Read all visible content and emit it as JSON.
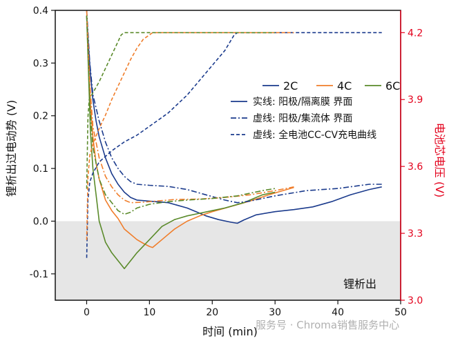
{
  "chart_data": {
    "type": "line",
    "xlabel": "时间 (min)",
    "ylabel": "锂析出过电动势 (V)",
    "y2label": "电池芯电压 (V)",
    "xlim": [
      -5,
      50
    ],
    "ylim": [
      -0.15,
      0.4
    ],
    "y2lim": [
      3.0,
      4.3
    ],
    "xticks": [
      "0",
      "10",
      "20",
      "30",
      "40",
      "50"
    ],
    "yticks": [
      "-0.1",
      "0.0",
      "0.1",
      "0.2",
      "0.3",
      "0.4"
    ],
    "y2ticks": [
      "3.0",
      "3.3",
      "3.6",
      "3.9",
      "4.2"
    ],
    "shaded_region": {
      "ymin": -0.15,
      "ymax": 0.0,
      "color": "#e6e6e6"
    },
    "region_label": "锂析出",
    "legend_colors": [
      {
        "label": "2C",
        "color": "#1a3a8c"
      },
      {
        "label": "4C",
        "color": "#f07d2a"
      },
      {
        "label": "6C",
        "color": "#5a8a2a"
      }
    ],
    "legend_styles": [
      {
        "label": "实线: 阳极/隔离膜 界面",
        "dash": "solid"
      },
      {
        "label": "虚线: 阳极/集流体 界面",
        "dash": "dashdot"
      },
      {
        "label": "虚线: 全电池CC-CV充电曲线",
        "dash": "dashed"
      }
    ],
    "series": [
      {
        "rate": "2C",
        "kind": "anode_separator",
        "axis": "left",
        "color": "#1a3a8c",
        "dash": "solid",
        "x": [
          0,
          0.3,
          0.6,
          1,
          1.5,
          2,
          3,
          4,
          5,
          6,
          7,
          8,
          10,
          13,
          16,
          19,
          21,
          23,
          24,
          25,
          27,
          30,
          33,
          36,
          39,
          42,
          45,
          47
        ],
        "y": [
          0.39,
          0.33,
          0.28,
          0.23,
          0.19,
          0.16,
          0.12,
          0.09,
          0.07,
          0.055,
          0.045,
          0.04,
          0.038,
          0.035,
          0.025,
          0.01,
          0.003,
          -0.002,
          -0.004,
          0.002,
          0.012,
          0.018,
          0.022,
          0.027,
          0.037,
          0.05,
          0.06,
          0.065
        ]
      },
      {
        "rate": "4C",
        "kind": "anode_separator",
        "axis": "left",
        "color": "#f07d2a",
        "dash": "solid",
        "x": [
          0,
          0.3,
          0.6,
          1,
          1.5,
          2,
          3,
          4,
          5,
          6,
          7,
          8,
          9,
          10,
          10.5,
          11,
          12,
          14,
          16,
          18,
          20,
          23,
          26,
          29,
          31,
          33
        ],
        "y": [
          0.39,
          0.3,
          0.22,
          0.16,
          0.11,
          0.08,
          0.04,
          0.02,
          0.005,
          -0.015,
          -0.025,
          -0.035,
          -0.042,
          -0.048,
          -0.05,
          -0.045,
          -0.035,
          -0.015,
          0.0,
          0.01,
          0.018,
          0.028,
          0.038,
          0.05,
          0.057,
          0.064
        ]
      },
      {
        "rate": "6C",
        "kind": "anode_separator",
        "axis": "left",
        "color": "#5a8a2a",
        "dash": "solid",
        "x": [
          0,
          0.3,
          0.6,
          1,
          1.5,
          2,
          2.5,
          3,
          4,
          5,
          6,
          7,
          8,
          10,
          12,
          14,
          16,
          18,
          20,
          22,
          25,
          28,
          30
        ],
        "y": [
          0.39,
          0.28,
          0.17,
          0.1,
          0.05,
          0.0,
          -0.02,
          -0.04,
          -0.06,
          -0.075,
          -0.09,
          -0.075,
          -0.06,
          -0.035,
          -0.01,
          0.003,
          0.01,
          0.015,
          0.02,
          0.025,
          0.035,
          0.05,
          0.055
        ]
      },
      {
        "rate": "2C",
        "kind": "anode_collector",
        "axis": "left",
        "color": "#1a3a8c",
        "dash": "dashdot",
        "x": [
          0,
          0.5,
          1,
          2,
          3,
          4,
          5,
          6,
          7,
          8,
          10,
          13,
          16,
          19,
          22,
          24,
          26,
          30,
          35,
          40,
          45,
          47
        ],
        "y": [
          0.4,
          0.3,
          0.24,
          0.19,
          0.15,
          0.12,
          0.1,
          0.085,
          0.075,
          0.07,
          0.068,
          0.066,
          0.06,
          0.05,
          0.04,
          0.035,
          0.038,
          0.048,
          0.058,
          0.062,
          0.07,
          0.07
        ]
      },
      {
        "rate": "4C",
        "kind": "anode_collector",
        "axis": "left",
        "color": "#f07d2a",
        "dash": "dashdot",
        "x": [
          0,
          0.5,
          1,
          2,
          3,
          4,
          5,
          6,
          7,
          9,
          11,
          14,
          18,
          22,
          26,
          30,
          33
        ],
        "y": [
          0.4,
          0.26,
          0.18,
          0.12,
          0.085,
          0.065,
          0.05,
          0.04,
          0.035,
          0.036,
          0.038,
          0.041,
          0.042,
          0.045,
          0.05,
          0.058,
          0.065
        ]
      },
      {
        "rate": "6C",
        "kind": "anode_collector",
        "axis": "left",
        "color": "#5a8a2a",
        "dash": "dashdot",
        "x": [
          0,
          0.5,
          1,
          2,
          3,
          4,
          5,
          6,
          7,
          8,
          10,
          13,
          16,
          20,
          24,
          28,
          30
        ],
        "y": [
          0.39,
          0.22,
          0.14,
          0.08,
          0.05,
          0.035,
          0.02,
          0.013,
          0.017,
          0.025,
          0.032,
          0.037,
          0.04,
          0.043,
          0.048,
          0.058,
          0.062
        ]
      },
      {
        "rate": "2C",
        "kind": "full_cell",
        "axis": "right",
        "color": "#1a3a8c",
        "dash": "dashed",
        "x": [
          0,
          0.2,
          0.5,
          1,
          2,
          4,
          6,
          8,
          10,
          13,
          16,
          19,
          22,
          23.5,
          24,
          30,
          40,
          47
        ],
        "y": [
          3.19,
          3.45,
          3.53,
          3.57,
          3.62,
          3.67,
          3.71,
          3.74,
          3.78,
          3.84,
          3.92,
          4.02,
          4.12,
          4.19,
          4.2,
          4.2,
          4.2,
          4.2
        ]
      },
      {
        "rate": "4C",
        "kind": "full_cell",
        "axis": "right",
        "color": "#f07d2a",
        "dash": "dashed",
        "x": [
          0,
          0.2,
          0.5,
          1,
          2,
          3,
          4,
          5,
          6,
          7,
          8,
          9,
          10,
          10.5,
          15,
          25,
          33
        ],
        "y": [
          3.27,
          3.55,
          3.65,
          3.7,
          3.77,
          3.83,
          3.9,
          3.96,
          4.02,
          4.08,
          4.13,
          4.17,
          4.19,
          4.2,
          4.2,
          4.2,
          4.2
        ]
      },
      {
        "rate": "6C",
        "kind": "full_cell",
        "axis": "right",
        "color": "#5a8a2a",
        "dash": "dashed",
        "x": [
          0,
          0.2,
          0.4,
          1,
          2,
          3,
          4,
          5,
          5.5,
          6,
          10,
          20,
          30
        ],
        "y": [
          3.5,
          3.82,
          3.9,
          3.93,
          3.98,
          4.04,
          4.1,
          4.16,
          4.19,
          4.2,
          4.2,
          4.2,
          4.2
        ]
      }
    ]
  },
  "watermark": "服务号 · Chroma销售服务中心"
}
